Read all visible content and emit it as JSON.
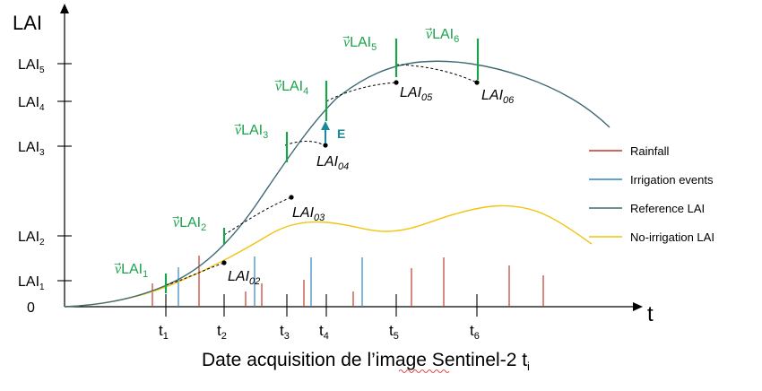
{
  "axes": {
    "y_title": "LAI",
    "x_title": "t",
    "origin_label": "0",
    "caption": "Date acquisition de l’image Sentinel-2 t",
    "caption_subscript": "i"
  },
  "y_ticks": [
    {
      "base": "LAI",
      "sub": "1"
    },
    {
      "base": "LAI",
      "sub": "2"
    },
    {
      "base": "LAI",
      "sub": "3"
    },
    {
      "base": "LAI",
      "sub": "4"
    },
    {
      "base": "LAI",
      "sub": "5"
    }
  ],
  "x_ticks": [
    {
      "base": "t",
      "sub": "1"
    },
    {
      "base": "t",
      "sub": "2"
    },
    {
      "base": "t",
      "sub": "3"
    },
    {
      "base": "t",
      "sub": "4"
    },
    {
      "base": "t",
      "sub": "5"
    },
    {
      "base": "t",
      "sub": "6"
    }
  ],
  "vlai_labels": [
    {
      "prefix": "⃗",
      "base": "LAI",
      "sub": "1"
    },
    {
      "prefix": "⃗",
      "base": "LAI",
      "sub": "2"
    },
    {
      "prefix": "⃗",
      "base": "LAI",
      "sub": "3"
    },
    {
      "prefix": "⃗",
      "base": "LAI",
      "sub": "4"
    },
    {
      "prefix": "⃗",
      "base": "LAI",
      "sub": "5"
    },
    {
      "prefix": "⃗",
      "base": "LAI",
      "sub": "6"
    }
  ],
  "vlai_symbol": "v",
  "point_labels": [
    {
      "base": "LAI",
      "sub": "02"
    },
    {
      "base": "LAI",
      "sub": "03"
    },
    {
      "base": "LAI",
      "sub": "04"
    },
    {
      "base": "LAI",
      "sub": "05"
    },
    {
      "base": "LAI",
      "sub": "06"
    }
  ],
  "error_label": "E",
  "legend": [
    {
      "label": "Rainfall",
      "color": "#c0392b"
    },
    {
      "label": "Irrigation events",
      "color": "#2e86c1"
    },
    {
      "label": "Reference LAI",
      "color": "#3d6b73"
    },
    {
      "label": "No-irrigation LAI",
      "color": "#f1c40f"
    }
  ],
  "colors": {
    "axis": "#000000",
    "reference_curve": "#3d6b73",
    "no_irrigation_curve": "#f1c40f",
    "rainfall": "#c0392b",
    "irrigation": "#2e86c1",
    "vlai": "#1aa34a",
    "error_arrow": "#1a8a9a",
    "forecast": "#000000"
  }
}
